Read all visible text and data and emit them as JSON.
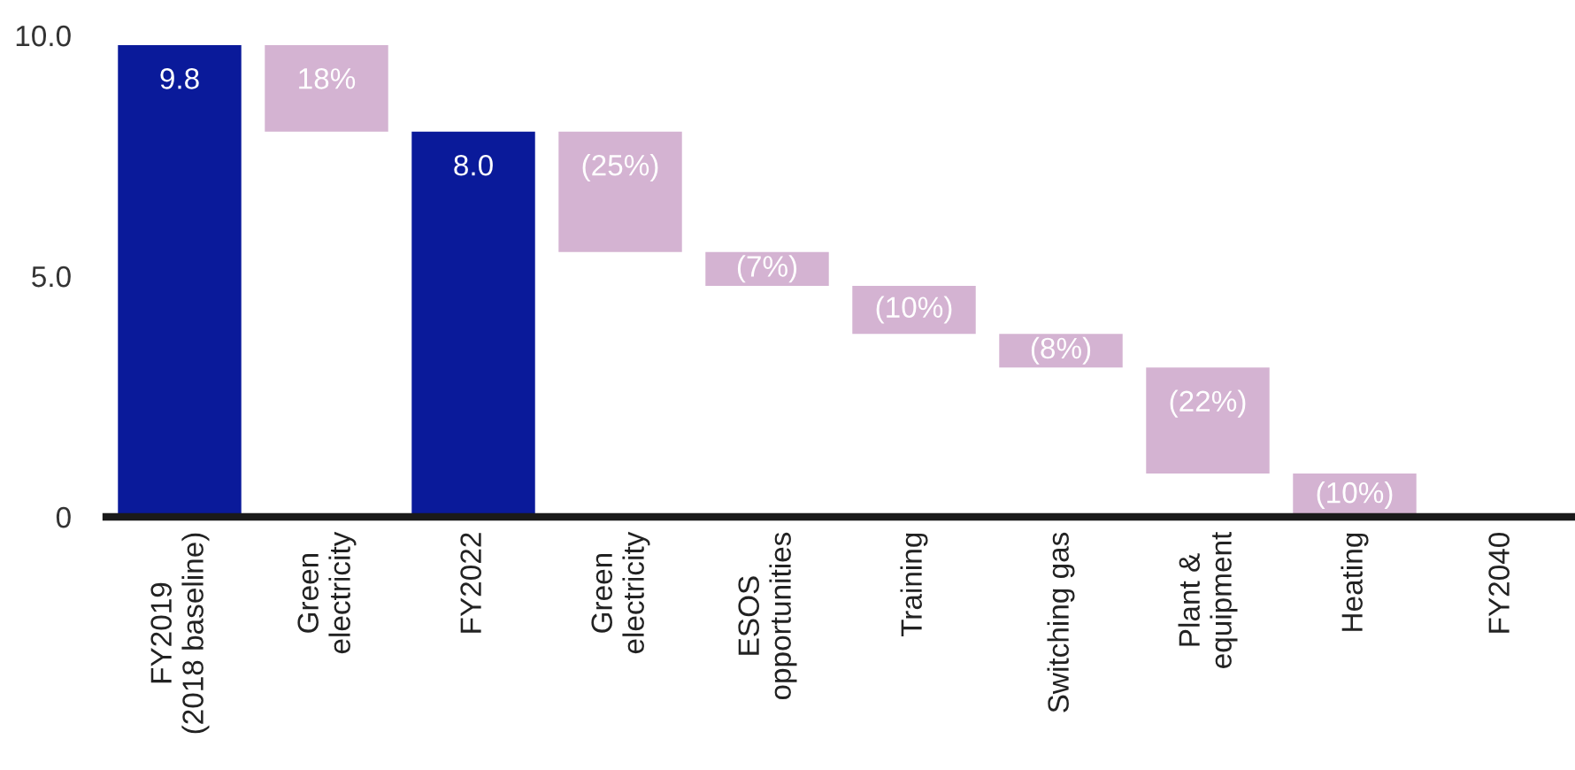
{
  "chart_data": {
    "type": "bar",
    "categories": [
      "FY2019\n(2018 baseline)",
      "Green\nelectricity",
      "FY2022",
      "Green\nelectricity",
      "ESOS\nopportunities",
      "Training",
      "Switching gas",
      "Plant &\nequipment",
      "Heating",
      "FY2040"
    ],
    "base": [
      0,
      8.0,
      0,
      5.5,
      4.8,
      3.8,
      3.1,
      0.9,
      0,
      null
    ],
    "values": [
      9.8,
      1.8,
      8.0,
      2.5,
      0.7,
      1.0,
      0.7,
      2.2,
      0.9,
      null
    ],
    "colors": [
      "#0a1a9a",
      "#d4b3d2",
      "#0a1a9a",
      "#d4b3d2",
      "#d4b3d2",
      "#d4b3d2",
      "#d4b3d2",
      "#d4b3d2",
      "#d4b3d2",
      "#d4b3d2"
    ],
    "value_labels": [
      "9.8",
      null,
      "8.0",
      null,
      null,
      null,
      null,
      null,
      null,
      null
    ],
    "annotations": [
      {
        "text": "18%",
        "x": "Green\nelectricity",
        "y": 9.8
      },
      "(25%)",
      {
        "text": "(7%)",
        "x": "ESOS\nopportunities",
        "y": 5.5
      },
      {
        "text": "(10%)",
        "x": "Training",
        "y": 4.8
      },
      {
        "text": "(8%)",
        "x": "Switching gas",
        "y": 3.8
      },
      {
        "text": "(22%)",
        "x": "Plant &\nequipment",
        "y": 3.1
      },
      {
        "text": "(10%)",
        "x": "Heating",
        "y": 0.9
      }
    ],
    "ylim": [
      0,
      10
    ],
    "yticks": [
      0,
      {
        "value": 5,
        "label": "5.0"
      },
      {
        "value": 10,
        "label": "10.0"
      }
    ],
    "grid": false,
    "legend": false
  }
}
